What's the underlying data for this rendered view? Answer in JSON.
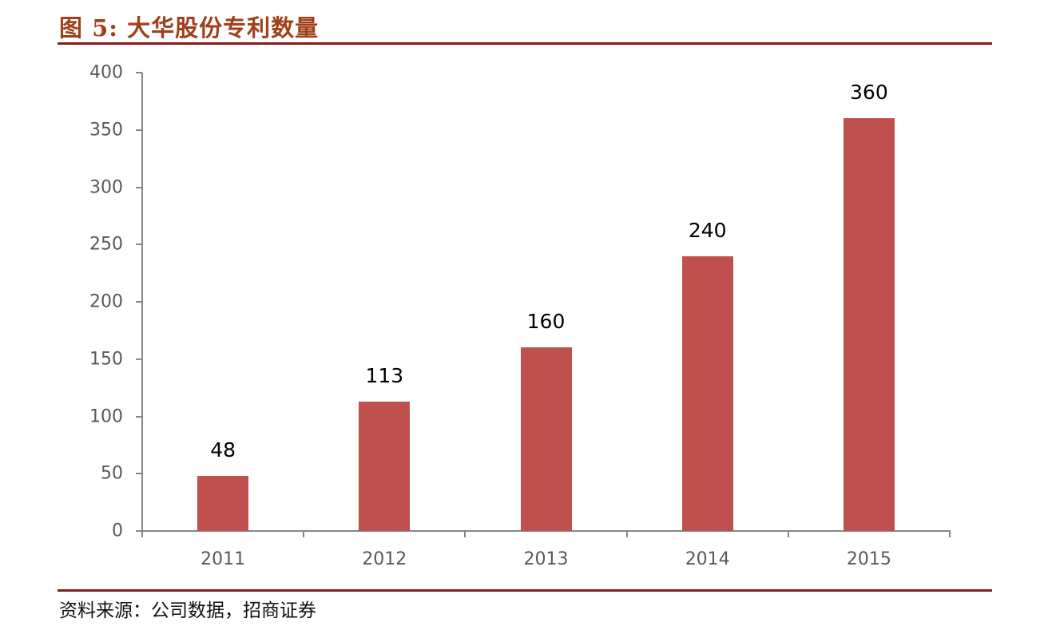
{
  "header": {
    "title": "图 5:  大华股份专利数量"
  },
  "footer": {
    "source": "资料来源：公司数据，招商证券"
  },
  "colors": {
    "bar": "#c0504d",
    "title": "#a0401a",
    "rule": "#8b1a1a",
    "axis": "#878787",
    "tick_label": "#595959"
  },
  "chart_data": {
    "type": "bar",
    "title": "大华股份专利数量",
    "xlabel": "",
    "ylabel": "",
    "categories": [
      "2011",
      "2012",
      "2013",
      "2014",
      "2015"
    ],
    "values": [
      48,
      113,
      160,
      240,
      360
    ],
    "data_labels": [
      "48",
      "113",
      "160",
      "240",
      "360"
    ],
    "ylim": [
      0,
      400
    ],
    "yticks": [
      "0",
      "50",
      "100",
      "150",
      "200",
      "250",
      "300",
      "350",
      "400"
    ],
    "grid": false,
    "legend": null,
    "series": [
      {
        "name": "专利数量",
        "values": [
          48,
          113,
          160,
          240,
          360
        ],
        "color": "#c0504d"
      }
    ]
  }
}
